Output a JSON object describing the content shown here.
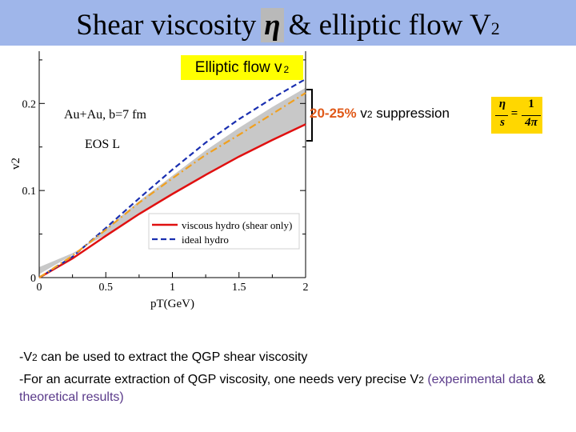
{
  "title": {
    "pre": "Shear viscosity",
    "eta": "η",
    "post": "& elliptic flow",
    "v": "V",
    "sub": "2"
  },
  "plot_title": {
    "text": "Elliptic flow v",
    "sub": "2"
  },
  "suppression": {
    "pct": "20-25%",
    "v": "v",
    "sub": "2",
    "text": "suppression"
  },
  "formula": {
    "eta": "η",
    "s": "s",
    "one": "1",
    "fourpi": "4π",
    "eq": "="
  },
  "notes": {
    "line1": {
      "lead": "-V",
      "sub": "2",
      "rest": " can be used to extract the QGP shear viscosity"
    },
    "line2": {
      "lead": "-For an acurrate extraction of QGP viscosity, one needs very precise V",
      "sub": "2",
      "paren_open": " (experimental data",
      "amp": " & ",
      "theory": "theoretical results",
      "paren_close": ")"
    }
  },
  "colors": {
    "title_bar": "#9fb6ea",
    "viscous": "#e01010",
    "ideal": "#1a2fb0",
    "orange": "#f0a020",
    "band": "#c8c8c8"
  },
  "chart_data": {
    "type": "line",
    "title": "",
    "xlabel": "p_T(GeV)",
    "ylabel": "v_2",
    "xlim": [
      0,
      2
    ],
    "ylim": [
      0,
      0.26
    ],
    "xticks": [
      "0",
      "0.5",
      "1",
      "1.5",
      "2"
    ],
    "yticks": [
      "0",
      "0.1",
      "0.2"
    ],
    "annotations": [
      "Au+Au, b=7 fm",
      "EOS L"
    ],
    "legend": [
      "viscous hydro (shear only)",
      "ideal hydro"
    ],
    "legend_position": "bottom-right",
    "series": [
      {
        "name": "viscous hydro (shear only)",
        "color": "#e01010",
        "style": "solid",
        "x": [
          0,
          0.25,
          0.5,
          0.75,
          1.0,
          1.25,
          1.5,
          1.75,
          2.0
        ],
        "y": [
          0,
          0.022,
          0.048,
          0.073,
          0.096,
          0.118,
          0.139,
          0.158,
          0.176
        ]
      },
      {
        "name": "ideal hydro",
        "color": "#1a2fb0",
        "style": "dashed",
        "x": [
          0,
          0.25,
          0.5,
          0.75,
          1.0,
          1.25,
          1.5,
          1.75,
          2.0
        ],
        "y": [
          0,
          0.024,
          0.057,
          0.091,
          0.124,
          0.155,
          0.182,
          0.206,
          0.228
        ]
      },
      {
        "color": "#f0a020",
        "style": "dashdot",
        "x": [
          0,
          0.25,
          0.5,
          0.75,
          1.0,
          1.25,
          1.5,
          1.75,
          2.0
        ],
        "y": [
          0,
          0.025,
          0.055,
          0.086,
          0.114,
          0.141,
          0.164,
          0.188,
          0.212
        ]
      }
    ],
    "band": {
      "color": "#c8c8c8",
      "x": [
        0,
        0.25,
        0.5,
        0.75,
        1.0,
        1.25,
        1.5,
        1.75,
        2.0
      ],
      "y_low": [
        0.012,
        0.028,
        0.049,
        0.073,
        0.097,
        0.118,
        0.138,
        0.157,
        0.176
      ],
      "y_high": [
        0.004,
        0.026,
        0.056,
        0.088,
        0.117,
        0.146,
        0.172,
        0.196,
        0.218
      ]
    }
  }
}
